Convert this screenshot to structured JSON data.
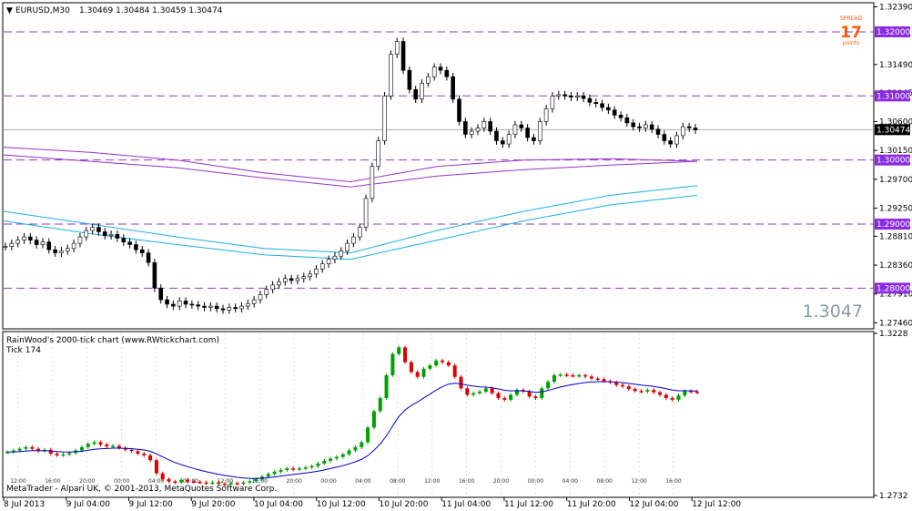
{
  "header": {
    "symbol_title": "EURUSD,M30",
    "ohlc": "1.30469 1.30484 1.30459 1.30474"
  },
  "spread": {
    "label_top": "SPREAD",
    "value": "17",
    "label_bottom": "points"
  },
  "current_price_big": "1.3047",
  "copyright": "MetaTrader - Alpari UK, © 2001-2013, MetaQuotes Software Corp.",
  "subchart": {
    "title": "RainWood's 2000-tick chart  (www.RWtickchart.com)",
    "subtitle": "Tick 174"
  },
  "colors": {
    "level_line": "#9932cc",
    "bull": "#00a000",
    "bear": "#e00000",
    "ma_blue": "#0000cc",
    "env_purple": "#9932cc",
    "env_cyan": "#1ab0e8",
    "price_tag_bg": "#000000",
    "level_tag_bg": "#8a2be2"
  },
  "chart_data": [
    {
      "type": "line",
      "title": "EURUSD,M30",
      "x_tick_labels": [
        "8 Jul 2013",
        "9 Jul 04:00",
        "9 Jul 12:00",
        "9 Jul 20:00",
        "10 Jul 04:00",
        "10 Jul 12:00",
        "10 Jul 20:00",
        "11 Jul 04:00",
        "11 Jul 12:00",
        "11 Jul 20:00",
        "12 Jul 04:00",
        "12 Jul 12:00"
      ],
      "y_tick_labels": [
        "1.32390",
        "1.31490",
        "1.31045",
        "1.30600",
        "1.30150",
        "1.29700",
        "1.29250",
        "1.28810",
        "1.28360",
        "1.27910",
        "1.27460"
      ],
      "ylim": [
        1.2738,
        1.3244
      ],
      "horizontal_levels": [
        {
          "label": "1.32000",
          "value": 1.32
        },
        {
          "label": "1.31000",
          "value": 1.31
        },
        {
          "label": "1.30000",
          "value": 1.3
        },
        {
          "label": "1.29000",
          "value": 1.29
        },
        {
          "label": "1.28000",
          "value": 1.28
        }
      ],
      "current_price": {
        "label": "1.30474",
        "value": 1.30474
      },
      "series": [
        {
          "values": [
            1.2865,
            1.287,
            1.2875,
            1.288,
            1.2875,
            1.2868,
            1.2872,
            1.286,
            1.2855,
            1.2858,
            1.2862,
            1.287,
            1.288,
            1.289,
            1.2895,
            1.2888,
            1.2882,
            1.2884,
            1.2878,
            1.2872,
            1.2868,
            1.286,
            1.2855,
            1.284,
            1.28,
            1.2782,
            1.2775,
            1.2772,
            1.278,
            1.2775,
            1.2774,
            1.2772,
            1.277,
            1.2772,
            1.2768,
            1.2766,
            1.277,
            1.2768,
            1.2772,
            1.2776,
            1.2782,
            1.279,
            1.2798,
            1.2805,
            1.281,
            1.2815,
            1.2812,
            1.2815,
            1.2818,
            1.2822,
            1.283,
            1.2838,
            1.2845,
            1.285,
            1.2858,
            1.287,
            1.288,
            1.2895,
            1.294,
            1.299,
            1.303,
            1.31,
            1.3165,
            1.3185,
            1.314,
            1.311,
            1.3095,
            1.312,
            1.313,
            1.3145,
            1.314,
            1.313,
            1.3095,
            1.306,
            1.304,
            1.3045,
            1.305,
            1.306,
            1.3045,
            1.303,
            1.3025,
            1.304,
            1.3055,
            1.305,
            1.3035,
            1.303,
            1.306,
            1.308,
            1.31,
            1.3102,
            1.31,
            1.3098,
            1.31,
            1.3096,
            1.309,
            1.3088,
            1.3082,
            1.3078,
            1.307,
            1.3066,
            1.3058,
            1.3052,
            1.305,
            1.3055,
            1.3048,
            1.304,
            1.303,
            1.3025,
            1.3038,
            1.3052,
            1.305,
            1.3047
          ],
          "low_points": [
            1.276
          ]
        }
      ],
      "envelopes": [
        {
          "color": "purple",
          "values_upper": [
            1.302,
            1.3012,
            1.3,
            1.298,
            1.2966,
            1.299,
            1.3,
            1.3002,
            1.2998
          ],
          "values_lower": [
            1.3008,
            1.2998,
            1.2988,
            1.2972,
            1.2958,
            1.2975,
            1.2985,
            1.2992,
            1.2998
          ]
        },
        {
          "color": "cyan",
          "values_upper": [
            1.292,
            1.29,
            1.288,
            1.2862,
            1.2855,
            1.289,
            1.292,
            1.2945,
            1.296
          ],
          "values_lower": [
            1.2905,
            1.2885,
            1.2868,
            1.2852,
            1.2845,
            1.2875,
            1.2905,
            1.293,
            1.2945
          ]
        }
      ]
    },
    {
      "type": "line",
      "title": "RainWood's 2000-tick chart  (www.RWtickchart.com)",
      "y_tick_labels": [
        "1.3228",
        "1.2732"
      ],
      "x_tick_labels": [
        "12:00",
        "16:00",
        "20:00",
        "00:00",
        "04:00",
        "08:00",
        "12:00",
        "16:00",
        "20:00",
        "00:00",
        "04:00",
        "08:00",
        "12:00",
        "16:00",
        "20:00",
        "00:00",
        "04:00",
        "08:00",
        "12:00",
        "16:00"
      ]
    }
  ]
}
